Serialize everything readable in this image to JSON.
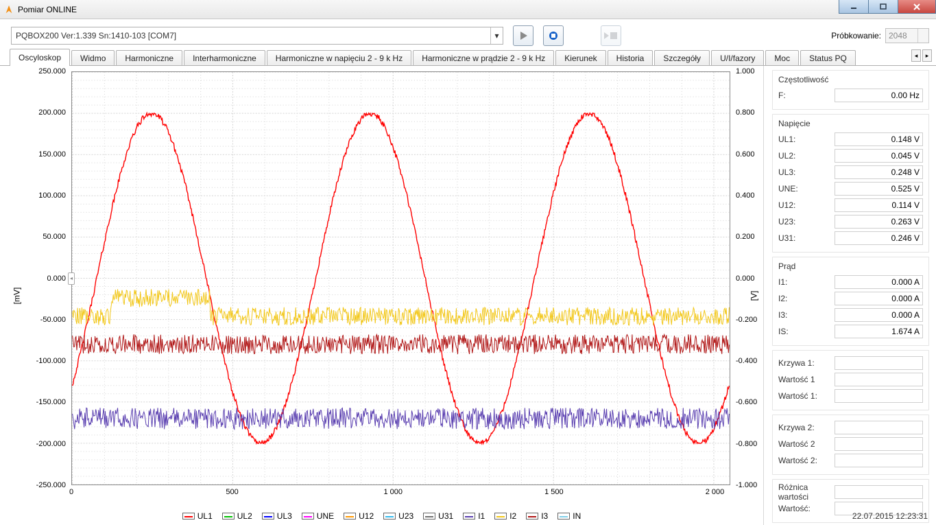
{
  "window": {
    "title": "Pomiar ONLINE"
  },
  "toolbar": {
    "device": "PQBOX200 Ver:1.339 Sn:1410-103 [COM7]",
    "sampling_label": "Próbkowanie:",
    "sampling_value": "2048"
  },
  "tabs": [
    "Oscyloskop",
    "Widmo",
    "Harmoniczne",
    "Interharmoniczne",
    "Harmoniczne w napięciu 2 - 9 k Hz",
    "Harmoniczne w prądzie 2 - 9 k Hz",
    "Kierunek",
    "Historia",
    "Szczegóły",
    "U/I/fazory",
    "Moc",
    "Status PQ"
  ],
  "active_tab": 0,
  "side": {
    "freq": {
      "title": "Częstotliwość",
      "rows": [
        {
          "lbl": "F:",
          "val": "0.00 Hz"
        }
      ]
    },
    "volt": {
      "title": "Napięcie",
      "rows": [
        {
          "lbl": "UL1:",
          "val": "0.148 V"
        },
        {
          "lbl": "UL2:",
          "val": "0.045 V"
        },
        {
          "lbl": "UL3:",
          "val": "0.248 V"
        },
        {
          "lbl": "UNE:",
          "val": "0.525 V"
        },
        {
          "lbl": "U12:",
          "val": "0.114 V"
        },
        {
          "lbl": "U23:",
          "val": "0.263 V"
        },
        {
          "lbl": "U31:",
          "val": "0.246 V"
        }
      ]
    },
    "curr": {
      "title": "Prąd",
      "rows": [
        {
          "lbl": "I1:",
          "val": "0.000 A"
        },
        {
          "lbl": "I2:",
          "val": "0.000 A"
        },
        {
          "lbl": "I3:",
          "val": "0.000 A"
        },
        {
          "lbl": "IS:",
          "val": "1.674 A"
        }
      ]
    },
    "k1": {
      "rows": [
        {
          "lbl": "Krzywa 1:",
          "val": ""
        },
        {
          "lbl": "Wartość 1",
          "val": ""
        },
        {
          "lbl": "Wartość 1:",
          "val": ""
        }
      ]
    },
    "k2": {
      "rows": [
        {
          "lbl": "Krzywa 2:",
          "val": ""
        },
        {
          "lbl": "Wartość 2",
          "val": ""
        },
        {
          "lbl": "Wartość 2:",
          "val": ""
        }
      ]
    },
    "diff": {
      "rows": [
        {
          "lbl": "Różnica wartości",
          "val": ""
        },
        {
          "lbl": "Wartość:",
          "val": ""
        }
      ]
    },
    "timestamp": "22.07.2015 12:23:31"
  },
  "chart": {
    "x": {
      "min": 0,
      "max": 2048,
      "ticks": [
        0,
        500,
        1000,
        1500,
        2000
      ],
      "tick_labels": [
        "0",
        "500",
        "1 000",
        "1 500",
        "2 000"
      ]
    },
    "yL": {
      "label": "[mV]",
      "min": -250,
      "max": 250,
      "ticks": [
        -250,
        -200,
        -150,
        -100,
        -50,
        0,
        50,
        100,
        150,
        200,
        250
      ],
      "tick_labels": [
        "-250.000",
        "-200.000",
        "-150.000",
        "-100.000",
        "-50.000",
        "0.000",
        "50.000",
        "100.000",
        "150.000",
        "200.000",
        "250.000"
      ]
    },
    "yR": {
      "label": "[V]",
      "min": -1,
      "max": 1,
      "ticks": [
        -1,
        -0.8,
        -0.6,
        -0.4,
        -0.2,
        0,
        0.2,
        0.4,
        0.6,
        0.8,
        1
      ],
      "tick_labels": [
        "-1.000",
        "-0.800",
        "-0.600",
        "-0.400",
        "-0.200",
        "0.000",
        "0.200",
        "0.400",
        "0.600",
        "0.800",
        "1.000"
      ]
    },
    "grid_color": "#d4d4d4",
    "minor_per_major": 5,
    "legend": [
      {
        "name": "UL1",
        "color": "#ff0000"
      },
      {
        "name": "UL2",
        "color": "#00c000"
      },
      {
        "name": "UL3",
        "color": "#0000ff"
      },
      {
        "name": "UNE",
        "color": "#ff00ff"
      },
      {
        "name": "U12",
        "color": "#ff9900"
      },
      {
        "name": "U23",
        "color": "#33bbee"
      },
      {
        "name": "U31",
        "color": "#707070"
      },
      {
        "name": "I1",
        "color": "#5a3fb0"
      },
      {
        "name": "I2",
        "color": "#f2c719"
      },
      {
        "name": "I3",
        "color": "#b01515"
      },
      {
        "name": "IN",
        "color": "#7fcfe8"
      }
    ],
    "series": [
      {
        "name": "main_red",
        "color": "#ff0000",
        "width": 1.4,
        "axis": "L",
        "type": "sine",
        "amp": 200,
        "offset": 0,
        "phase_deg": -40,
        "cycles": 3,
        "noise": 7,
        "clip": 200
      },
      {
        "name": "purple",
        "color": "#5a3fb0",
        "width": 1,
        "axis": "L",
        "type": "flat",
        "mean": -170,
        "noise": 13
      },
      {
        "name": "yellow",
        "color": "#f2c719",
        "width": 1,
        "axis": "L",
        "type": "flat",
        "mean": -46,
        "noise": 11,
        "bump": {
          "from": 120,
          "to": 430,
          "delta": 22
        }
      },
      {
        "name": "darkred",
        "color": "#b01515",
        "width": 1,
        "axis": "L",
        "type": "flat",
        "mean": -80,
        "noise": 12
      }
    ]
  }
}
